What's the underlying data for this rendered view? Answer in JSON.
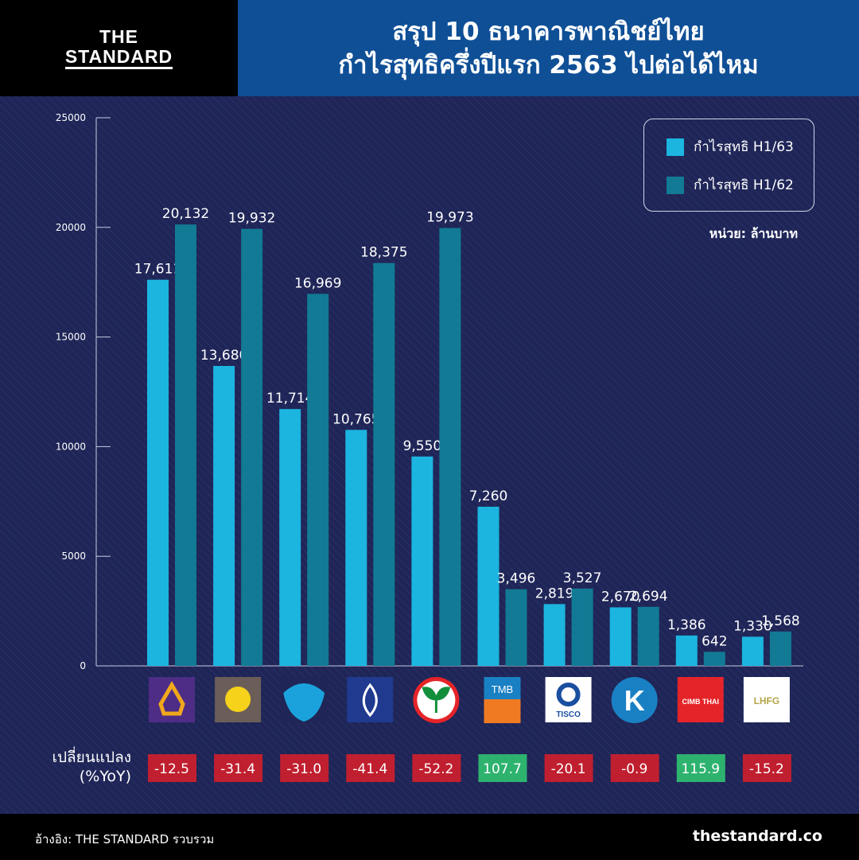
{
  "brand": {
    "line1": "THE",
    "line2": "STANDARD"
  },
  "header": {
    "title_line1": "สรุป 10 ธนาคารพาณิชย์ไทย",
    "title_line2": "กำไรสุทธิครึ่งปีแรก 2563 ไปต่อได้ไหม"
  },
  "unit": "หน่วย: ล้านบาท",
  "yoy_label": [
    "เปลี่ยนแปลง",
    "(%YoY)"
  ],
  "footer": {
    "source": "อ้างอิง: THE STANDARD รวบรวม",
    "site": "thestandard.co"
  },
  "colors": {
    "h163": "#1bb5e0",
    "h162": "#127a94",
    "negative": "#c01f2f",
    "positive": "#2eb36f"
  },
  "chart_data": {
    "type": "bar",
    "ylim": [
      0,
      25000
    ],
    "yticks": [
      "0",
      "5000",
      "10000",
      "15000",
      "20000",
      "25000"
    ],
    "yticks_values": [
      0,
      5000,
      10000,
      15000,
      20000,
      25000
    ],
    "legend_position": "top-right",
    "series": [
      {
        "name": "กำไรสุทธิ H1/63",
        "values": [
          17611,
          13680,
          11714,
          10765,
          9550,
          7260,
          2819,
          2670,
          1386,
          1330
        ],
        "labels": [
          "17,611",
          "13,680",
          "11,714",
          "10,765",
          "9,550",
          "7,260",
          "2,819",
          "2,670",
          "1,386",
          "1,330"
        ]
      },
      {
        "name": "กำไรสุทธิ H1/62",
        "values": [
          20132,
          19932,
          16969,
          18375,
          19973,
          3496,
          3527,
          2694,
          642,
          1568
        ],
        "labels": [
          "20,132",
          "19,932",
          "16,969",
          "18,375",
          "19,973",
          "3,496",
          "3,527",
          "2,694",
          "642",
          "1,568"
        ]
      }
    ],
    "categories": [
      {
        "logo": "scb",
        "bg": "#4e2d86",
        "fg": "#f0a81c",
        "text": ""
      },
      {
        "logo": "krungsri",
        "bg": "#6b5e58",
        "fg": "#f6d21b",
        "text": ""
      },
      {
        "logo": "ktb",
        "bg": "#1f2556",
        "fg": "#1ba2dc",
        "text": ""
      },
      {
        "logo": "bbl",
        "bg": "#1f3a8e",
        "fg": "#ffffff",
        "text": ""
      },
      {
        "logo": "kbank",
        "bg": "#ffffff",
        "fg": "#138f3c",
        "text": ""
      },
      {
        "logo": "tmb",
        "bg": "#1a80c4",
        "fg": "#ffffff",
        "text": "TMB"
      },
      {
        "logo": "tisco",
        "bg": "#ffffff",
        "fg": "#1a4fa0",
        "text": "TISCO"
      },
      {
        "logo": "kkp",
        "bg": "#1a80c4",
        "fg": "#ffffff",
        "text": "K"
      },
      {
        "logo": "cimb",
        "bg": "#e52429",
        "fg": "#ffffff",
        "text": "CIMB THAI"
      },
      {
        "logo": "lhfg",
        "bg": "#ffffff",
        "fg": "#b5a548",
        "text": "LHFG"
      }
    ],
    "yoy": [
      "-12.5",
      "-31.4",
      "-31.0",
      "-41.4",
      "-52.2",
      "107.7",
      "-20.1",
      "-0.9",
      "115.9",
      "-15.2"
    ]
  }
}
